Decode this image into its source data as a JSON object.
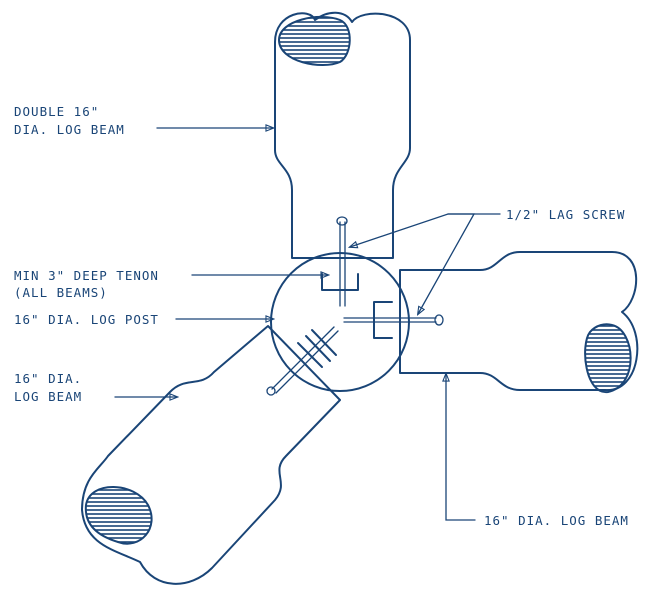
{
  "colors": {
    "ink": "#1a4577",
    "background": "#ffffff"
  },
  "labels": {
    "double_beam_line1": "DOUBLE 16\"",
    "double_beam_line2": "DIA. LOG BEAM",
    "lag_screw": "1/2\" LAG SCREW",
    "tenon_line1": "MIN 3\" DEEP TENON",
    "tenon_line2": "(ALL BEAMS)",
    "log_post": "16\" DIA. LOG POST",
    "left_beam_line1": "16\" DIA.",
    "left_beam_line2": "LOG BEAM",
    "right_beam": "16\" DIA. LOG BEAM"
  }
}
